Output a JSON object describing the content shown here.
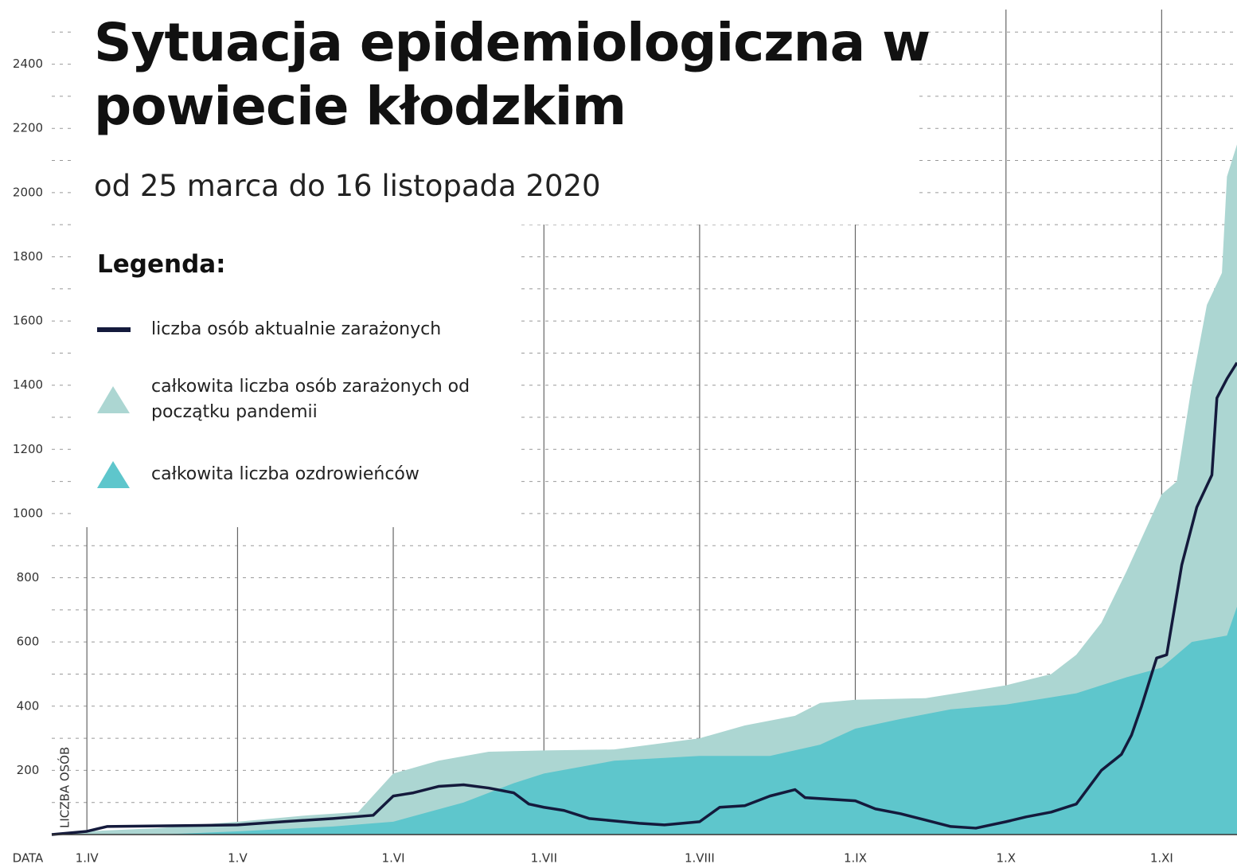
{
  "chart_data": {
    "type": "area-line",
    "title": "Sytuacja epidemiologiczna w powiecie kłodzkim",
    "subtitle": "od 25 marca do 16 listopada 2020",
    "legend_title": "Legenda:",
    "x_label": "DATA",
    "y_label": "LICZBA OSÓB",
    "xlim": [
      "2020-03-25",
      "2020-11-16"
    ],
    "xticks": [
      {
        "value": "2020-04-01",
        "label": "1.IV"
      },
      {
        "value": "2020-05-01",
        "label": "1.V"
      },
      {
        "value": "2020-06-01",
        "label": "1.VI"
      },
      {
        "value": "2020-07-01",
        "label": "1.VII"
      },
      {
        "value": "2020-08-01",
        "label": "1.VIII"
      },
      {
        "value": "2020-09-01",
        "label": "1.IX"
      },
      {
        "value": "2020-10-01",
        "label": "1.X"
      },
      {
        "value": "2020-11-01",
        "label": "1.XI"
      }
    ],
    "ylim": [
      0,
      2600
    ],
    "yticks": [
      200,
      400,
      600,
      800,
      1000,
      1200,
      1400,
      1600,
      1800,
      2000,
      2200,
      2400
    ],
    "minor_yticks": [
      100,
      300,
      500,
      700,
      900,
      1100,
      1300,
      1500,
      1700,
      1900,
      2100,
      2300,
      2500
    ],
    "grid": true,
    "series": [
      {
        "name": "całkowita liczba osób zarażonych od początku pandemii",
        "kind": "area",
        "color": "#acd6d2",
        "x": [
          "2020-03-25",
          "2020-04-01",
          "2020-04-15",
          "2020-05-01",
          "2020-05-15",
          "2020-05-25",
          "2020-06-01",
          "2020-06-10",
          "2020-06-20",
          "2020-07-01",
          "2020-07-15",
          "2020-08-01",
          "2020-08-10",
          "2020-08-20",
          "2020-08-25",
          "2020-09-01",
          "2020-09-15",
          "2020-10-01",
          "2020-10-10",
          "2020-10-15",
          "2020-10-20",
          "2020-10-25",
          "2020-11-01",
          "2020-11-04",
          "2020-11-07",
          "2020-11-10",
          "2020-11-13",
          "2020-11-14",
          "2020-11-16"
        ],
        "values": [
          0,
          10,
          20,
          40,
          60,
          70,
          190,
          230,
          258,
          262,
          265,
          300,
          340,
          370,
          410,
          420,
          425,
          465,
          500,
          560,
          660,
          820,
          1060,
          1100,
          1400,
          1650,
          1750,
          2050,
          2150
        ]
      },
      {
        "name": "całkowita liczba ozdrowieńców",
        "kind": "area",
        "color": "#5ec6cc",
        "x": [
          "2020-03-25",
          "2020-04-15",
          "2020-05-01",
          "2020-05-20",
          "2020-06-01",
          "2020-06-15",
          "2020-06-25",
          "2020-07-01",
          "2020-07-15",
          "2020-08-01",
          "2020-08-15",
          "2020-08-25",
          "2020-09-01",
          "2020-09-10",
          "2020-09-20",
          "2020-10-01",
          "2020-10-15",
          "2020-10-25",
          "2020-11-01",
          "2020-11-07",
          "2020-11-14",
          "2020-11-16"
        ],
        "values": [
          0,
          0,
          10,
          25,
          40,
          100,
          160,
          190,
          230,
          245,
          245,
          280,
          330,
          360,
          390,
          405,
          440,
          490,
          520,
          600,
          620,
          710
        ]
      },
      {
        "name": "liczba osób aktualnie zarażonych",
        "kind": "line",
        "color": "#141a3c",
        "x": [
          "2020-03-25",
          "2020-04-01",
          "2020-04-05",
          "2020-05-01",
          "2020-05-10",
          "2020-05-20",
          "2020-05-28",
          "2020-06-01",
          "2020-06-05",
          "2020-06-10",
          "2020-06-15",
          "2020-06-20",
          "2020-06-25",
          "2020-06-28",
          "2020-07-01",
          "2020-07-05",
          "2020-07-10",
          "2020-07-20",
          "2020-07-25",
          "2020-08-01",
          "2020-08-05",
          "2020-08-10",
          "2020-08-15",
          "2020-08-20",
          "2020-08-22",
          "2020-09-01",
          "2020-09-05",
          "2020-09-10",
          "2020-09-15",
          "2020-09-20",
          "2020-09-25",
          "2020-10-01",
          "2020-10-05",
          "2020-10-10",
          "2020-10-15",
          "2020-10-20",
          "2020-10-24",
          "2020-10-26",
          "2020-10-28",
          "2020-10-31",
          "2020-11-02",
          "2020-11-05",
          "2020-11-08",
          "2020-11-11",
          "2020-11-12",
          "2020-11-14",
          "2020-11-16"
        ],
        "values": [
          0,
          10,
          25,
          30,
          40,
          50,
          60,
          120,
          130,
          150,
          155,
          145,
          130,
          95,
          85,
          75,
          50,
          35,
          30,
          40,
          85,
          90,
          120,
          140,
          115,
          105,
          80,
          65,
          45,
          25,
          20,
          40,
          55,
          70,
          95,
          200,
          250,
          310,
          400,
          550,
          560,
          840,
          1020,
          1120,
          1360,
          1420,
          1470
        ]
      }
    ]
  }
}
